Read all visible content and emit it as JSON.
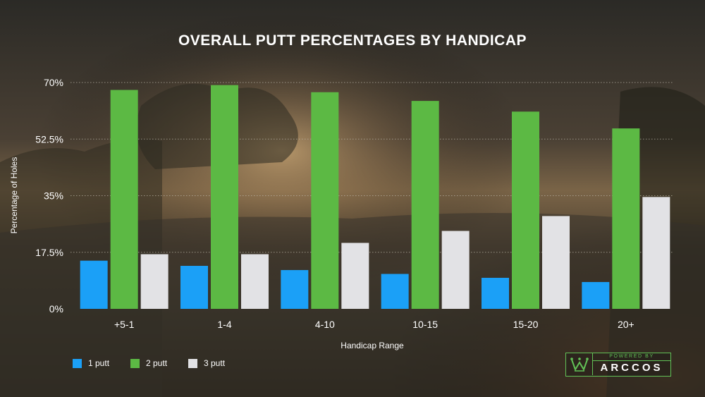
{
  "colors": {
    "one_putt": "#1ba0f7",
    "two_putt": "#5cb944",
    "three_putt": "#e2e2e5",
    "grid": "#bdb7aa",
    "text": "#ffffff",
    "logo_accent": "#62c156"
  },
  "logo": {
    "top_text": "POWERED BY",
    "main_text": "ARCCOS",
    "icon": "crown-w-icon"
  },
  "chart_data": {
    "type": "bar",
    "title": "OVERALL PUTT PERCENTAGES BY HANDICAP",
    "xlabel": "Handicap Range",
    "ylabel": "Percentage of Holes",
    "categories": [
      "+5-1",
      "1-4",
      "4-10",
      "10-15",
      "15-20",
      "20+"
    ],
    "ylim": [
      0,
      70
    ],
    "yticks": [
      0,
      17.5,
      35,
      52.5,
      70
    ],
    "ytick_labels": [
      "0%",
      "17.5%",
      "35%",
      "52.5%",
      "70%"
    ],
    "grid": true,
    "legend_position": "bottom-left",
    "series": [
      {
        "name": "1 putt",
        "color": "#1ba0f7",
        "values": [
          14.9,
          13.3,
          12.0,
          10.8,
          9.6,
          8.3
        ]
      },
      {
        "name": "2 putt",
        "color": "#5cb944",
        "values": [
          67.7,
          69.2,
          67.0,
          64.3,
          61.0,
          55.8
        ]
      },
      {
        "name": "3 putt",
        "color": "#e2e2e5",
        "values": [
          16.9,
          16.9,
          20.4,
          24.1,
          28.7,
          34.6
        ]
      }
    ]
  }
}
